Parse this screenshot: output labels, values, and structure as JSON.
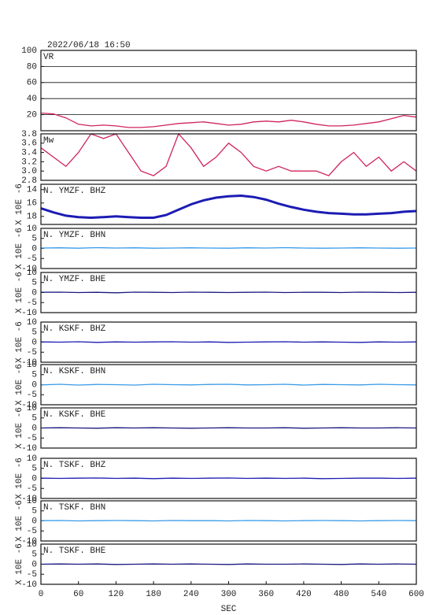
{
  "chart_data": [
    {
      "type": "line",
      "title": "2022/06/18 16:50",
      "label": "VR",
      "color": "#d0245a",
      "ylim": [
        0,
        100
      ],
      "yticks": [
        20,
        40,
        60,
        80,
        100
      ],
      "grid": true,
      "x": [
        0,
        20,
        40,
        60,
        80,
        100,
        120,
        140,
        160,
        180,
        200,
        220,
        240,
        260,
        280,
        300,
        320,
        340,
        360,
        380,
        400,
        420,
        440,
        460,
        480,
        500,
        520,
        540,
        560,
        580,
        600
      ],
      "values": [
        22,
        21,
        16,
        8,
        6,
        7,
        6,
        4,
        4,
        5,
        7,
        9,
        10,
        11,
        9,
        7,
        8,
        11,
        12,
        11,
        13,
        11,
        8,
        6,
        6,
        7,
        9,
        11,
        15,
        19,
        17
      ]
    },
    {
      "type": "line",
      "label": "Mw",
      "color": "#d0245a",
      "ylim": [
        2.8,
        3.8
      ],
      "yticks": [
        2.8,
        {
          "value": 3,
          "label": "3.0"
        },
        3.2,
        3.4,
        3.6,
        3.8
      ],
      "x": [
        0,
        20,
        40,
        60,
        80,
        100,
        120,
        140,
        160,
        180,
        200,
        220,
        240,
        260,
        280,
        300,
        320,
        340,
        360,
        380,
        400,
        420,
        440,
        460,
        480,
        500,
        520,
        540,
        560,
        580,
        600
      ],
      "values": [
        3.5,
        3.3,
        3.1,
        3.4,
        3.8,
        3.7,
        3.8,
        3.4,
        3.0,
        2.9,
        3.1,
        3.8,
        3.5,
        3.1,
        3.3,
        3.6,
        3.4,
        3.1,
        3.0,
        3.1,
        3.0,
        3.0,
        3.0,
        2.9,
        3.2,
        3.4,
        3.1,
        3.3,
        3.0,
        3.2,
        3.0
      ]
    },
    {
      "type": "line",
      "label": "N. YMZF. BHZ",
      "ylabel": "X 10E -6",
      "color": "#1c1cb4",
      "ylim": [
        -19.2,
        -13.2
      ],
      "yticks": [
        {
          "value": -14,
          "label": "14"
        },
        {
          "value": -16,
          "label": "16"
        },
        {
          "value": -18,
          "label": "18"
        }
      ],
      "x": [
        0,
        20,
        40,
        60,
        80,
        100,
        120,
        140,
        160,
        180,
        200,
        220,
        240,
        260,
        280,
        300,
        320,
        340,
        360,
        380,
        400,
        420,
        440,
        460,
        480,
        500,
        520,
        540,
        560,
        580,
        600
      ],
      "values": [
        -16.8,
        -17.4,
        -17.9,
        -18.1,
        -18.2,
        -18.1,
        -18.0,
        -18.1,
        -18.2,
        -18.2,
        -17.8,
        -17.0,
        -16.2,
        -15.6,
        -15.2,
        -15.0,
        -14.9,
        -15.1,
        -15.5,
        -16.1,
        -16.6,
        -17.0,
        -17.3,
        -17.5,
        -17.6,
        -17.7,
        -17.7,
        -17.6,
        -17.5,
        -17.3,
        -17.2
      ]
    },
    {
      "type": "line",
      "label": "N. YMZF. BHN",
      "ylabel": "X 10E -6",
      "color": "#3a9be8",
      "ylim": [
        -10,
        10
      ],
      "yticks": [
        -10,
        -5,
        0,
        5,
        10
      ],
      "x": [
        0,
        30,
        60,
        90,
        120,
        150,
        180,
        210,
        240,
        270,
        300,
        330,
        360,
        390,
        420,
        450,
        480,
        510,
        540,
        570,
        600
      ],
      "values": [
        0.2,
        0.3,
        0.1,
        0.4,
        0.2,
        0.3,
        0.1,
        0.2,
        0.3,
        0.2,
        0.1,
        0.3,
        0.2,
        0.4,
        0.2,
        0.1,
        0.2,
        0.3,
        0.2,
        0.1,
        0.2
      ]
    },
    {
      "type": "line",
      "label": "N. YMZF. BHE",
      "ylabel": "X 10E -6",
      "color": "#1a1a80",
      "ylim": [
        -10,
        10
      ],
      "yticks": [
        -10,
        -5,
        0,
        5,
        10
      ],
      "x": [
        0,
        30,
        60,
        90,
        120,
        150,
        180,
        210,
        240,
        270,
        300,
        330,
        360,
        390,
        420,
        450,
        480,
        510,
        540,
        570,
        600
      ],
      "values": [
        0.1,
        0.2,
        0.0,
        0.1,
        -0.1,
        0.2,
        0.1,
        0.0,
        0.2,
        0.1,
        0.0,
        0.1,
        0.2,
        0.0,
        0.1,
        0.1,
        0.0,
        0.2,
        0.1,
        0.0,
        0.1
      ]
    },
    {
      "type": "line",
      "label": "N. KSKF. BHZ",
      "ylabel": "X 10E -6",
      "color": "#1c1cb4",
      "ylim": [
        -10,
        10
      ],
      "yticks": [
        -10,
        -5,
        0,
        5,
        10
      ],
      "x": [
        0,
        30,
        60,
        90,
        120,
        150,
        180,
        210,
        240,
        270,
        300,
        330,
        360,
        390,
        420,
        450,
        480,
        510,
        540,
        570,
        600
      ],
      "values": [
        0.1,
        0.0,
        0.2,
        -0.1,
        0.1,
        0.0,
        0.1,
        0.2,
        0.0,
        0.1,
        -0.1,
        0.0,
        0.1,
        0.2,
        0.0,
        0.1,
        0.0,
        -0.1,
        0.1,
        0.0,
        0.1
      ]
    },
    {
      "type": "line",
      "label": "N. KSKF. BHN",
      "ylabel": "X 10E -6",
      "color": "#3a9be8",
      "ylim": [
        -10,
        10
      ],
      "yticks": [
        -10,
        -5,
        0,
        5,
        10
      ],
      "x": [
        0,
        30,
        60,
        90,
        120,
        150,
        180,
        210,
        240,
        270,
        300,
        330,
        360,
        390,
        420,
        450,
        480,
        510,
        540,
        570,
        600
      ],
      "values": [
        -0.1,
        0.2,
        -0.2,
        0.1,
        0.0,
        -0.2,
        0.2,
        0.0,
        -0.1,
        0.1,
        0.2,
        -0.1,
        0.0,
        0.2,
        -0.2,
        0.1,
        0.0,
        -0.1,
        0.2,
        0.0,
        -0.1
      ]
    },
    {
      "type": "line",
      "label": "N. KSKF. BHE",
      "ylabel": "X 10E -6",
      "color": "#1a1a80",
      "ylim": [
        -10,
        10
      ],
      "yticks": [
        -10,
        -5,
        0,
        5,
        10
      ],
      "x": [
        0,
        30,
        60,
        90,
        120,
        150,
        180,
        210,
        240,
        270,
        300,
        330,
        360,
        390,
        420,
        450,
        480,
        510,
        540,
        570,
        600
      ],
      "values": [
        0.0,
        0.1,
        0.0,
        -0.1,
        0.1,
        0.0,
        0.1,
        0.0,
        -0.1,
        0.0,
        0.1,
        0.0,
        0.0,
        0.1,
        -0.1,
        0.0,
        0.1,
        0.0,
        0.0,
        0.1,
        0.0
      ]
    },
    {
      "type": "line",
      "label": "N. TSKF. BHZ",
      "ylabel": "X 10E -6",
      "color": "#1c1cb4",
      "ylim": [
        -10,
        10
      ],
      "yticks": [
        -10,
        -5,
        0,
        5,
        10
      ],
      "x": [
        0,
        30,
        60,
        90,
        120,
        150,
        180,
        210,
        240,
        270,
        300,
        330,
        360,
        390,
        420,
        450,
        480,
        510,
        540,
        570,
        600
      ],
      "values": [
        0.1,
        0.0,
        0.1,
        0.2,
        0.0,
        0.1,
        -0.1,
        0.1,
        0.0,
        0.1,
        0.2,
        0.0,
        0.1,
        0.0,
        0.1,
        -0.1,
        0.0,
        0.1,
        0.1,
        0.0,
        0.1
      ]
    },
    {
      "type": "line",
      "label": "N. TSKF. BHN",
      "ylabel": "X 10E -6",
      "color": "#3a9be8",
      "ylim": [
        -10,
        10
      ],
      "yticks": [
        -10,
        -5,
        0,
        5,
        10
      ],
      "x": [
        0,
        30,
        60,
        90,
        120,
        150,
        180,
        210,
        240,
        270,
        300,
        330,
        360,
        390,
        420,
        450,
        480,
        510,
        540,
        570,
        600
      ],
      "values": [
        0.1,
        0.2,
        0.0,
        0.1,
        0.2,
        0.1,
        0.0,
        0.2,
        0.1,
        0.1,
        0.0,
        0.2,
        0.1,
        0.0,
        0.1,
        0.2,
        0.1,
        0.0,
        0.1,
        0.2,
        0.1
      ]
    },
    {
      "type": "line",
      "label": "N. TSKF. BHE",
      "ylabel": "X 10E -6",
      "color": "#1a1a80",
      "ylim": [
        -10,
        10
      ],
      "yticks": [
        -10,
        -5,
        0,
        5,
        10
      ],
      "xlim": [
        0,
        600
      ],
      "xticks": [
        0,
        60,
        120,
        180,
        240,
        300,
        360,
        420,
        480,
        540,
        600
      ],
      "xlabel": "SEC",
      "x": [
        0,
        30,
        60,
        90,
        120,
        150,
        180,
        210,
        240,
        270,
        300,
        330,
        360,
        390,
        420,
        450,
        480,
        510,
        540,
        570,
        600
      ],
      "values": [
        0.0,
        0.1,
        0.0,
        0.1,
        -0.1,
        0.0,
        0.1,
        0.0,
        0.1,
        0.0,
        -0.1,
        0.1,
        0.0,
        0.0,
        0.1,
        0.0,
        -0.1,
        0.1,
        0.0,
        0.1,
        0.0
      ]
    }
  ]
}
